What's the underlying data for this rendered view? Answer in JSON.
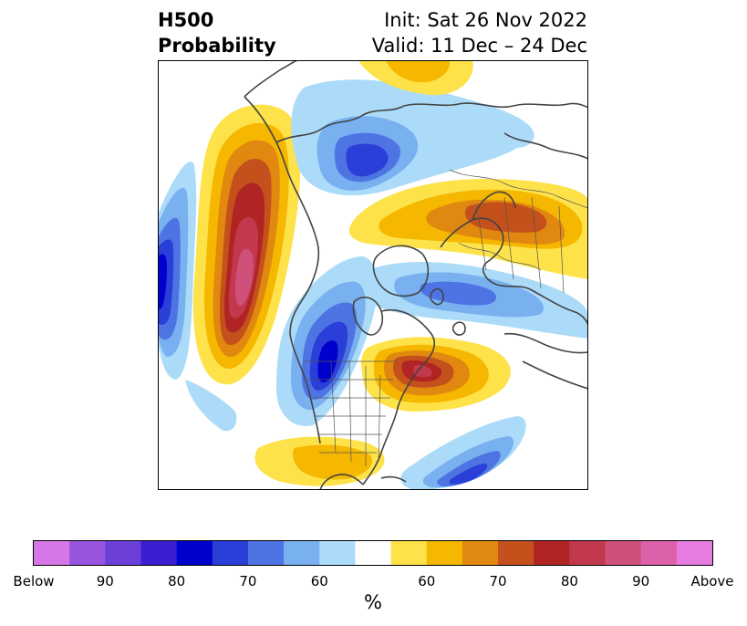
{
  "title": {
    "left_line1": "H500",
    "left_line2": "Probability",
    "right_line1": "Init: Sat 26 Nov 2022",
    "right_line2": "Valid: 11 Dec – 24 Dec"
  },
  "map": {
    "projection": "north-polar",
    "features": [
      "coastlines",
      "country-borders",
      "us-state-borders",
      "ocean-boundary-circle"
    ],
    "anomalies": [
      {
        "region": "Gulf of Alaska / NE Pacific",
        "sign": "above",
        "peak_percent": 90
      },
      {
        "region": "Western Canada / Northwest US",
        "sign": "below",
        "peak_percent": 80
      },
      {
        "region": "Hudson Bay / Eastern Canada",
        "sign": "above",
        "peak_percent": 75
      },
      {
        "region": "Northern Europe / Western Russia",
        "sign": "above",
        "peak_percent": 75
      },
      {
        "region": "North Atlantic / Greenland Sea",
        "sign": "below",
        "peak_percent": 65
      },
      {
        "region": "Arctic / Siberia",
        "sign": "below",
        "peak_percent": 70
      },
      {
        "region": "Western North Pacific",
        "sign": "below",
        "peak_percent": 85
      },
      {
        "region": "Subtropical Pacific",
        "sign": "above",
        "peak_percent": 65
      },
      {
        "region": "Subtropical Atlantic",
        "sign": "below",
        "peak_percent": 75
      }
    ]
  },
  "colorbar": {
    "unit_label": "%",
    "tick_labels": [
      "Below",
      "90",
      "80",
      "70",
      "60",
      "60",
      "70",
      "80",
      "90",
      "Above"
    ],
    "colors": [
      "#d776e6",
      "#9a55e0",
      "#6c3fd8",
      "#3a1fd0",
      "#0000cc",
      "#2a3fd8",
      "#4e74e4",
      "#78b0f0",
      "#abdbf8",
      "#ffffff",
      "#fee24a",
      "#f5b700",
      "#e08810",
      "#c4501b",
      "#b02424",
      "#c2384c",
      "#cf5079",
      "#dc61a8",
      "#e67be0"
    ]
  }
}
